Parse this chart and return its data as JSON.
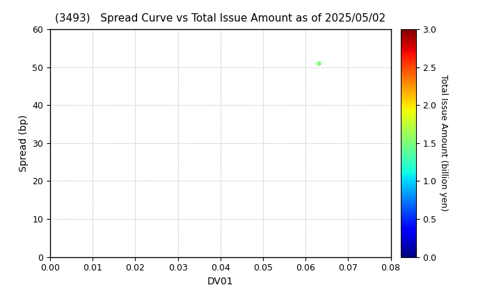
{
  "title": "(3493)   Spread Curve vs Total Issue Amount as of 2025/05/02",
  "xlabel": "DV01",
  "ylabel": "Spread (bp)",
  "colorbar_label": "Total Issue Amount (billion yen)",
  "xlim": [
    0.0,
    0.08
  ],
  "ylim": [
    0,
    60
  ],
  "xticks": [
    0.0,
    0.01,
    0.02,
    0.03,
    0.04,
    0.05,
    0.06,
    0.07,
    0.08
  ],
  "yticks": [
    0,
    10,
    20,
    30,
    40,
    50,
    60
  ],
  "colorbar_min": 0.0,
  "colorbar_max": 3.0,
  "colorbar_ticks": [
    0.0,
    0.5,
    1.0,
    1.5,
    2.0,
    2.5,
    3.0
  ],
  "scatter_x": [
    0.063
  ],
  "scatter_y": [
    51
  ],
  "scatter_color_values": [
    1.5
  ],
  "scatter_size": 15,
  "grid_color": "#b0b0b0",
  "grid_linestyle": ":",
  "background_color": "#ffffff",
  "title_fontsize": 11,
  "title_fontweight": "normal",
  "axis_label_fontsize": 10,
  "tick_fontsize": 9,
  "colorbar_fontsize": 9
}
